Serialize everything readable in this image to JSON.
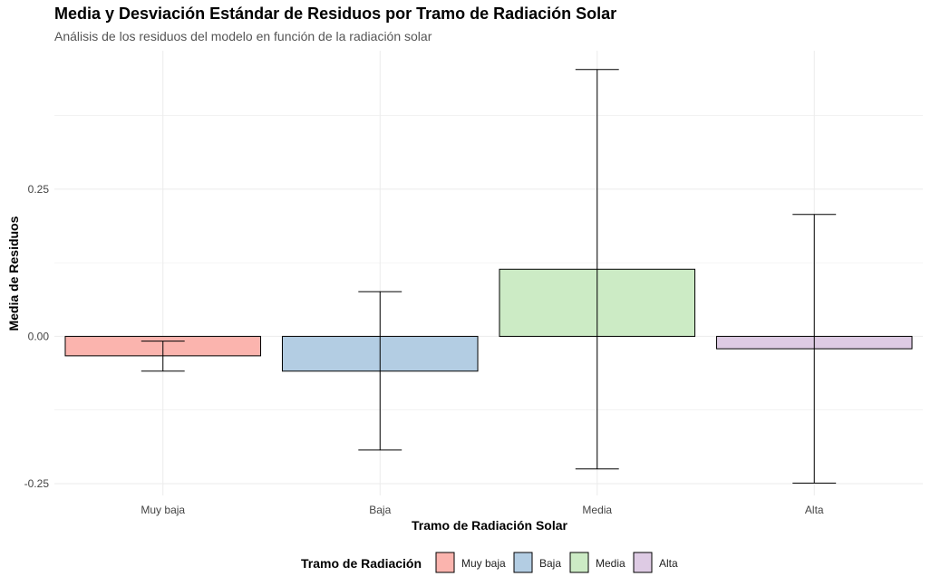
{
  "chart_data": {
    "type": "bar",
    "title": "Media y Desviación Estándar de Residuos por Tramo de Radiación Solar",
    "subtitle": "Análisis de los residuos del modelo en función de la radiación solar",
    "xlabel": "Tramo de Radiación Solar",
    "ylabel": "Media de Residuos",
    "categories": [
      "Muy baja",
      "Baja",
      "Media",
      "Alta"
    ],
    "values": [
      -0.033,
      -0.059,
      0.114,
      -0.021
    ],
    "error_bars": [
      {
        "low": -0.059,
        "high": -0.008
      },
      {
        "low": -0.193,
        "high": 0.076
      },
      {
        "low": -0.225,
        "high": 0.453
      },
      {
        "low": -0.249,
        "high": 0.207
      }
    ],
    "colors": [
      "#FBB4AE",
      "#B3CDE3",
      "#CCEBC5",
      "#DECBE4"
    ],
    "ylim": [
      -0.27,
      0.485
    ],
    "yticks": [
      -0.25,
      0,
      0.25
    ],
    "ytick_labels": [
      "-0.25",
      "0.00",
      "0.25"
    ],
    "grid": true,
    "legend": {
      "title": "Tramo de Radiación",
      "position": "bottom",
      "entries": [
        "Muy baja",
        "Baja",
        "Media",
        "Alta"
      ]
    }
  }
}
